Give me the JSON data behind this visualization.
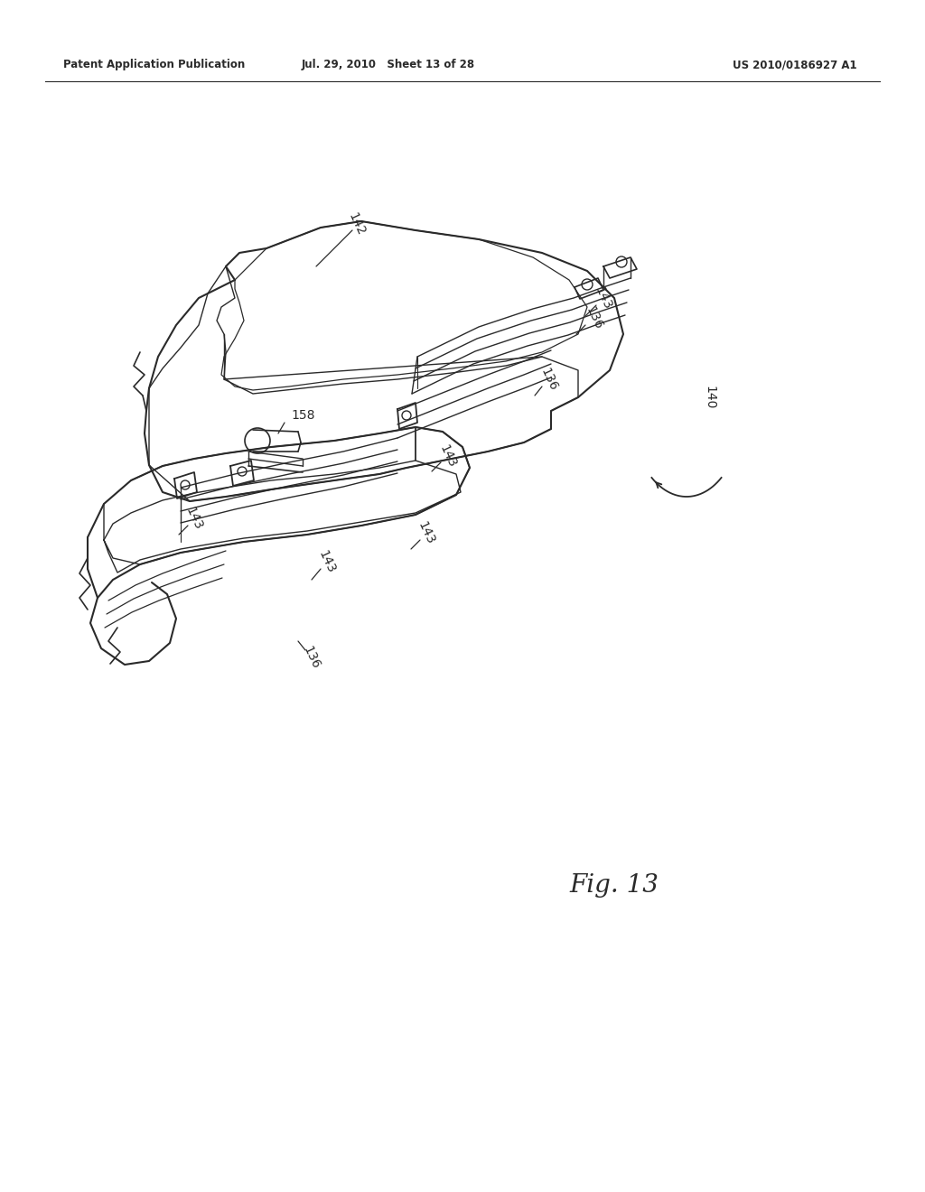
{
  "header_left": "Patent Application Publication",
  "header_mid": "Jul. 29, 2010   Sheet 13 of 28",
  "header_right": "US 2010/0186927 A1",
  "fig_label": "Fig. 13",
  "background_color": "#ffffff",
  "line_color": "#2a2a2a",
  "lw_outer": 1.4,
  "lw_inner": 0.9,
  "lw_rail": 1.1,
  "label_fontsize": 9.0,
  "fig_fontsize": 20
}
